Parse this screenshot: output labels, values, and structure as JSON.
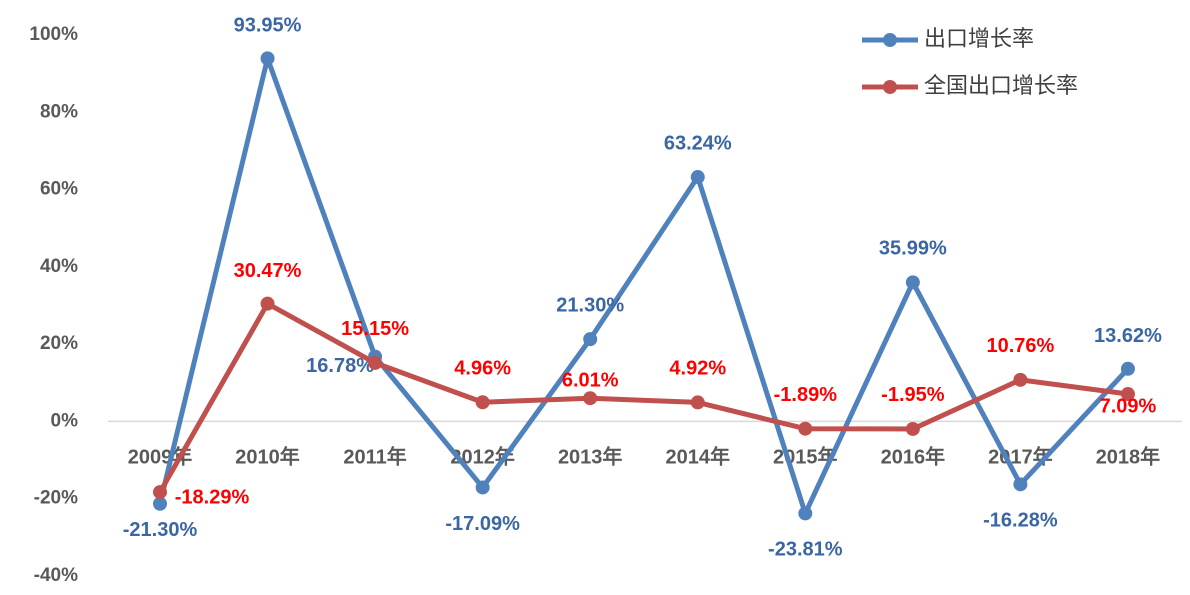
{
  "chart_data": {
    "type": "line",
    "categories": [
      "2009年",
      "2010年",
      "2011年",
      "2012年",
      "2013年",
      "2014年",
      "2015年",
      "2016年",
      "2017年",
      "2018年"
    ],
    "series": [
      {
        "name": "出口增长率",
        "color": "#4f81bd",
        "label_color": "#3a66a3",
        "values": [
          -21.3,
          93.95,
          16.78,
          -17.09,
          21.3,
          63.24,
          -23.81,
          35.99,
          -16.28,
          13.62
        ],
        "value_labels": [
          "-21.30%",
          "93.95%",
          "16.78%",
          "-17.09%",
          "21.30%",
          "63.24%",
          "-23.81%",
          "35.99%",
          "-16.28%",
          "13.62%"
        ]
      },
      {
        "name": "全国出口增长率",
        "color": "#c0504d",
        "label_color": "#ff0000",
        "values": [
          -18.29,
          30.47,
          15.15,
          4.96,
          6.01,
          4.92,
          -1.89,
          -1.95,
          10.76,
          7.09
        ],
        "value_labels": [
          "-18.29%",
          "30.47%",
          "15.15%",
          "4.96%",
          "6.01%",
          "4.92%",
          "-1.89%",
          "-1.95%",
          "10.76%",
          "7.09%"
        ]
      }
    ],
    "ylim": [
      -40,
      100
    ],
    "yticks": [
      {
        "value": -40,
        "label": "-40%"
      },
      {
        "value": -20,
        "label": "-20%"
      },
      {
        "value": 0,
        "label": "0%"
      },
      {
        "value": 20,
        "label": "20%"
      },
      {
        "value": 40,
        "label": "40%"
      },
      {
        "value": 60,
        "label": "60%"
      },
      {
        "value": 80,
        "label": "80%"
      },
      {
        "value": 100,
        "label": "100%"
      }
    ],
    "legend": "top-right"
  }
}
